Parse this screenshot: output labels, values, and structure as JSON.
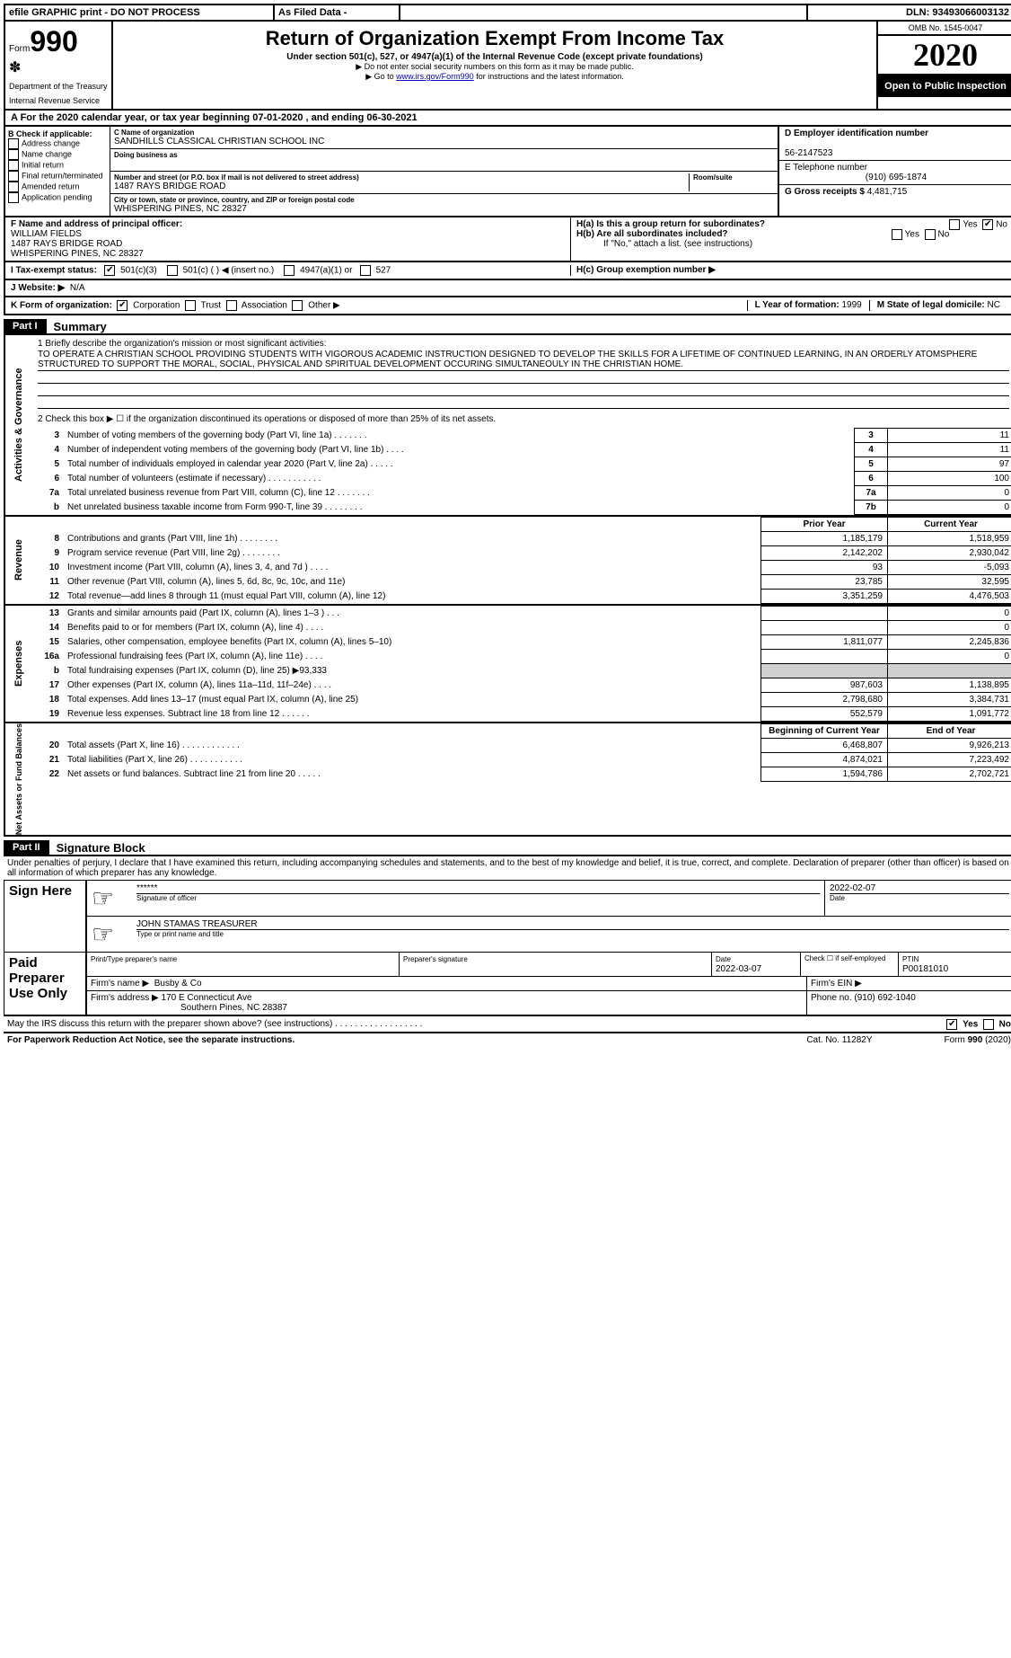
{
  "top": {
    "efile": "efile GRAPHIC print - DO NOT PROCESS",
    "asfiled": "As Filed Data -",
    "dln_lbl": "DLN:",
    "dln": "93493066003132"
  },
  "header": {
    "form_word": "Form",
    "form_no": "990",
    "dept": "Department of the Treasury",
    "irs": "Internal Revenue Service",
    "title": "Return of Organization Exempt From Income Tax",
    "sub": "Under section 501(c), 527, or 4947(a)(1) of the Internal Revenue Code (except private foundations)",
    "note1": "▶ Do not enter social security numbers on this form as it may be made public.",
    "note2_pre": "▶ Go to ",
    "note2_link": "www.irs.gov/Form990",
    "note2_post": " for instructions and the latest information.",
    "omb": "OMB No. 1545-0047",
    "year": "2020",
    "open": "Open to Public Inspection"
  },
  "A": {
    "text_pre": "A   For the 2020 calendar year, or tax year beginning ",
    "begin": "07-01-2020",
    "mid": " , and ending ",
    "end": "06-30-2021"
  },
  "B": {
    "lbl": "B Check if applicable:",
    "opts": [
      "Address change",
      "Name change",
      "Initial return",
      "Final return/terminated",
      "Amended return",
      "Application pending"
    ]
  },
  "C": {
    "name_lbl": "C Name of organization",
    "name": "SANDHILLS CLASSICAL CHRISTIAN SCHOOL INC",
    "dba_lbl": "Doing business as",
    "addr_lbl": "Number and street (or P.O. box if mail is not delivered to street address)",
    "addr": "1487 RAYS BRIDGE ROAD",
    "room_lbl": "Room/suite",
    "city_lbl": "City or town, state or province, country, and ZIP or foreign postal code",
    "city": "WHISPERING PINES, NC  28327"
  },
  "D": {
    "lbl": "D Employer identification number",
    "val": "56-2147523"
  },
  "E": {
    "lbl": "E Telephone number",
    "val": "(910) 695-1874"
  },
  "G": {
    "lbl": "G Gross receipts $",
    "val": "4,481,715"
  },
  "F": {
    "lbl": "F  Name and address of principal officer:",
    "name": "WILLIAM FIELDS",
    "addr1": "1487 RAYS BRIDGE ROAD",
    "addr2": "WHISPERING PINES, NC  28327"
  },
  "H": {
    "a": "H(a)  Is this a group return for subordinates?",
    "b": "H(b)  Are all subordinates included?",
    "b_note": "If \"No,\" attach a list. (see instructions)",
    "c": "H(c)  Group exemption number ▶",
    "yes": "Yes",
    "no": "No"
  },
  "I": {
    "lbl": "I   Tax-exempt status:",
    "o1": "501(c)(3)",
    "o2": "501(c) (   ) ◀ (insert no.)",
    "o3": "4947(a)(1) or",
    "o4": "527"
  },
  "J": {
    "lbl": "J   Website: ▶",
    "val": "N/A"
  },
  "K": {
    "lbl": "K Form of organization:",
    "o1": "Corporation",
    "o2": "Trust",
    "o3": "Association",
    "o4": "Other ▶"
  },
  "L": {
    "lbl": "L Year of formation:",
    "val": "1999"
  },
  "M": {
    "lbl": "M State of legal domicile:",
    "val": "NC"
  },
  "part1": {
    "num": "Part I",
    "title": "Summary"
  },
  "mission": {
    "q1": "1  Briefly describe the organization's mission or most significant activities:",
    "text": "TO OPERATE A CHRISTIAN SCHOOL PROVIDING STUDENTS WITH VIGOROUS ACADEMIC INSTRUCTION DESIGNED TO DEVELOP THE SKILLS FOR A LIFETIME OF CONTINUED LEARNING, IN AN ORDERLY ATOMSPHERE STRUCTURED TO SUPPORT THE MORAL, SOCIAL, PHYSICAL AND SPIRITUAL DEVELOPMENT OCCURING SIMULTANEOULY IN THE CHRISTIAN HOME.",
    "q2": "2   Check this box ▶ ☐ if the organization discontinued its operations or disposed of more than 25% of its net assets."
  },
  "gov_rows": [
    {
      "n": "3",
      "desc": "Number of voting members of the governing body (Part VI, line 1a)  .   .   .   .   .   .   .",
      "box": "3",
      "val": "11"
    },
    {
      "n": "4",
      "desc": "Number of independent voting members of the governing body (Part VI, line 1b)  .   .   .   .",
      "box": "4",
      "val": "11"
    },
    {
      "n": "5",
      "desc": "Total number of individuals employed in calendar year 2020 (Part V, line 2a)  .   .   .   .   .",
      "box": "5",
      "val": "97"
    },
    {
      "n": "6",
      "desc": "Total number of volunteers (estimate if necessary)  .   .   .   .   .   .   .   .   .   .   .",
      "box": "6",
      "val": "100"
    },
    {
      "n": "7a",
      "desc": "Total unrelated business revenue from Part VIII, column (C), line 12  .   .   .   .   .   .   .",
      "box": "7a",
      "val": "0"
    },
    {
      "n": "b",
      "desc": "Net unrelated business taxable income from Form 990-T, line 39  .   .   .   .   .   .   .   .",
      "box": "7b",
      "val": "0"
    }
  ],
  "year_hdr": {
    "prior": "Prior Year",
    "current": "Current Year"
  },
  "revenue": [
    {
      "n": "8",
      "desc": "Contributions and grants (Part VIII, line 1h)  .   .   .   .   .   .   .   .",
      "p": "1,185,179",
      "c": "1,518,959"
    },
    {
      "n": "9",
      "desc": "Program service revenue (Part VIII, line 2g)  .   .   .   .   .   .   .   .",
      "p": "2,142,202",
      "c": "2,930,042"
    },
    {
      "n": "10",
      "desc": "Investment income (Part VIII, column (A), lines 3, 4, and 7d )  .   .   .   .",
      "p": "93",
      "c": "-5,093"
    },
    {
      "n": "11",
      "desc": "Other revenue (Part VIII, column (A), lines 5, 6d, 8c, 9c, 10c, and 11e)",
      "p": "23,785",
      "c": "32,595"
    },
    {
      "n": "12",
      "desc": "Total revenue—add lines 8 through 11 (must equal Part VIII, column (A), line 12)",
      "p": "3,351,259",
      "c": "4,476,503"
    }
  ],
  "expenses": [
    {
      "n": "13",
      "desc": "Grants and similar amounts paid (Part IX, column (A), lines 1–3 )  .   .   .",
      "p": "",
      "c": "0"
    },
    {
      "n": "14",
      "desc": "Benefits paid to or for members (Part IX, column (A), line 4)  .   .   .   .",
      "p": "",
      "c": "0"
    },
    {
      "n": "15",
      "desc": "Salaries, other compensation, employee benefits (Part IX, column (A), lines 5–10)",
      "p": "1,811,077",
      "c": "2,245,836"
    },
    {
      "n": "16a",
      "desc": "Professional fundraising fees (Part IX, column (A), line 11e)  .   .   .   .",
      "p": "",
      "c": "0"
    },
    {
      "n": "b",
      "desc": "Total fundraising expenses (Part IX, column (D), line 25) ▶93,333",
      "p": "GRAY",
      "c": "GRAY"
    },
    {
      "n": "17",
      "desc": "Other expenses (Part IX, column (A), lines 11a–11d, 11f–24e)  .   .   .   .",
      "p": "987,603",
      "c": "1,138,895"
    },
    {
      "n": "18",
      "desc": "Total expenses. Add lines 13–17 (must equal Part IX, column (A), line 25)",
      "p": "2,798,680",
      "c": "3,384,731"
    },
    {
      "n": "19",
      "desc": "Revenue less expenses. Subtract line 18 from line 12  .   .   .   .   .   .",
      "p": "552,579",
      "c": "1,091,772"
    }
  ],
  "net_hdr": {
    "begin": "Beginning of Current Year",
    "end": "End of Year"
  },
  "net": [
    {
      "n": "20",
      "desc": "Total assets (Part X, line 16)  .   .   .   .   .   .   .   .   .   .   .   .",
      "p": "6,468,807",
      "c": "9,926,213"
    },
    {
      "n": "21",
      "desc": "Total liabilities (Part X, line 26)  .   .   .   .   .   .   .   .   .   .   .",
      "p": "4,874,021",
      "c": "7,223,492"
    },
    {
      "n": "22",
      "desc": "Net assets or fund balances. Subtract line 21 from line 20  .   .   .   .   .",
      "p": "1,594,786",
      "c": "2,702,721"
    }
  ],
  "part2": {
    "num": "Part II",
    "title": "Signature Block"
  },
  "sig": {
    "perjury": "Under penalties of perjury, I declare that I have examined this return, including accompanying schedules and statements, and to the best of my knowledge and belief, it is true, correct, and complete. Declaration of preparer (other than officer) is based on all information of which preparer has any knowledge.",
    "sign_here": "Sign Here",
    "stars": "******",
    "sig_off": "Signature of officer",
    "date1": "2022-02-07",
    "date_lbl": "Date",
    "name_title": "JOHN STAMAS TREASURER",
    "type_lbl": "Type or print name and title",
    "paid": "Paid Preparer Use Only",
    "pt_name_lbl": "Print/Type preparer's name",
    "prep_sig_lbl": "Preparer's signature",
    "date2": "2022-03-07",
    "check_lbl": "Check ☐ if self-employed",
    "ptin_lbl": "PTIN",
    "ptin": "P00181010",
    "firm_name_lbl": "Firm's name  ▶",
    "firm_name": "Busby & Co",
    "firm_ein_lbl": "Firm's EIN ▶",
    "firm_addr_lbl": "Firm's address ▶",
    "firm_addr": "170 E Connecticut Ave",
    "firm_addr2": "Southern Pines, NC  28387",
    "phone_lbl": "Phone no.",
    "phone": "(910) 692-1040",
    "discuss": "May the IRS discuss this return with the preparer shown above? (see instructions)  .   .   .   .   .   .   .   .   .   .   .   .   .   .   .   .   .   .",
    "yes": "Yes",
    "no": "No"
  },
  "footer": {
    "left": "For Paperwork Reduction Act Notice, see the separate instructions.",
    "mid": "Cat. No. 11282Y",
    "right": "Form 990 (2020)"
  },
  "side": {
    "gov": "Activities & Governance",
    "rev": "Revenue",
    "exp": "Expenses",
    "net": "Net Assets or Fund Balances"
  }
}
